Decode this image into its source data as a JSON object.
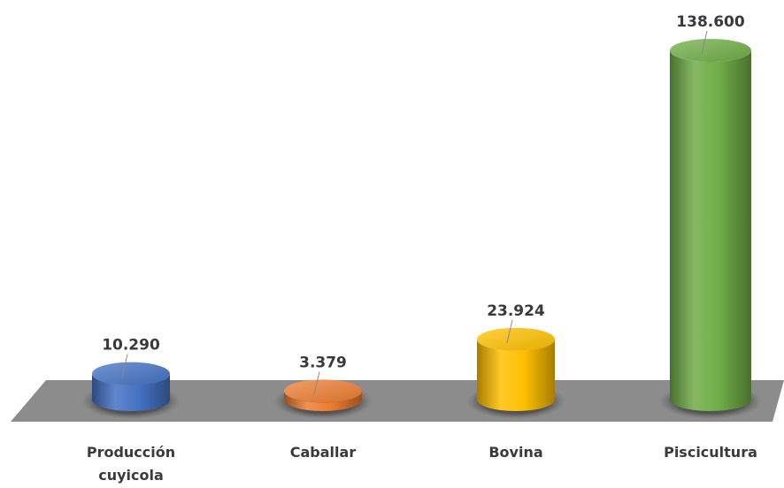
{
  "chart_data": {
    "type": "bar",
    "style": "3d-cylinder",
    "categories": [
      "Producción cuyicola",
      "Caballar",
      "Bovina",
      "Piscicultura"
    ],
    "category_lines": [
      [
        "Producción",
        "cuyicola"
      ],
      [
        "Caballar"
      ],
      [
        "Bovina"
      ],
      [
        "Piscicultura"
      ]
    ],
    "values": [
      10290,
      3379,
      23924,
      138600
    ],
    "data_labels": [
      "10.290",
      "3.379",
      "23.924",
      "138.600"
    ],
    "colors": [
      "#4472c4",
      "#ed7d31",
      "#ffc000",
      "#70ad47"
    ],
    "floor_color": "#8c8c8c",
    "title": "",
    "xlabel": "",
    "ylabel": "",
    "grid": false,
    "legend": "none"
  }
}
